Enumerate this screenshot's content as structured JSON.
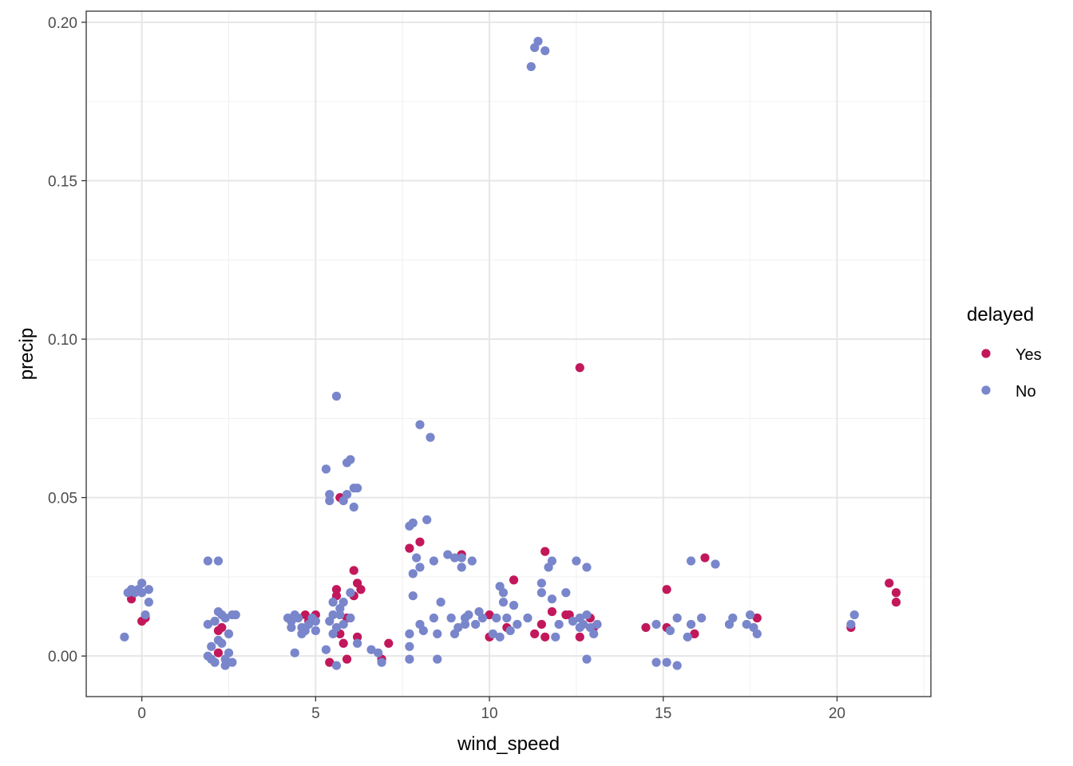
{
  "chart_data": {
    "type": "scatter",
    "title": "",
    "xlabel": "wind_speed",
    "ylabel": "precip",
    "xlim": [
      -1.6,
      22.7
    ],
    "ylim": [
      -0.0128,
      0.2035
    ],
    "x_ticks": [
      0,
      5,
      10,
      15,
      20
    ],
    "x_tick_labels": [
      "0",
      "5",
      "10",
      "15",
      "20"
    ],
    "y_ticks": [
      0.0,
      0.05,
      0.1,
      0.15,
      0.2
    ],
    "y_tick_labels": [
      "0.00",
      "0.05",
      "0.10",
      "0.15",
      "0.20"
    ],
    "grid": true,
    "legend": {
      "title": "delayed",
      "position": "right"
    },
    "series": [
      {
        "name": "Yes",
        "color": "#C2185B",
        "points": [
          [
            -0.3,
            0.018
          ],
          [
            0.0,
            0.011
          ],
          [
            0.1,
            0.012
          ],
          [
            2.2,
            0.008
          ],
          [
            2.3,
            0.009
          ],
          [
            2.2,
            0.001
          ],
          [
            4.7,
            0.013
          ],
          [
            4.8,
            0.011
          ],
          [
            5.0,
            0.013
          ],
          [
            5.4,
            -0.002
          ],
          [
            5.6,
            0.019
          ],
          [
            5.6,
            0.021
          ],
          [
            5.7,
            0.05
          ],
          [
            5.7,
            0.007
          ],
          [
            5.8,
            0.004
          ],
          [
            5.9,
            0.012
          ],
          [
            5.9,
            -0.001
          ],
          [
            6.1,
            0.027
          ],
          [
            6.1,
            0.019
          ],
          [
            6.2,
            0.023
          ],
          [
            6.2,
            0.006
          ],
          [
            6.3,
            0.021
          ],
          [
            6.9,
            -0.001
          ],
          [
            7.1,
            0.004
          ],
          [
            7.7,
            0.034
          ],
          [
            8.0,
            0.036
          ],
          [
            9.2,
            0.032
          ],
          [
            10.0,
            0.013
          ],
          [
            10.0,
            0.006
          ],
          [
            10.5,
            0.009
          ],
          [
            10.7,
            0.024
          ],
          [
            11.3,
            0.007
          ],
          [
            11.5,
            0.01
          ],
          [
            11.6,
            0.033
          ],
          [
            11.6,
            0.006
          ],
          [
            11.8,
            0.014
          ],
          [
            12.2,
            0.013
          ],
          [
            12.3,
            0.013
          ],
          [
            12.6,
            0.006
          ],
          [
            12.6,
            0.091
          ],
          [
            12.9,
            0.012
          ],
          [
            13.0,
            0.009
          ],
          [
            14.5,
            0.009
          ],
          [
            15.1,
            0.009
          ],
          [
            15.1,
            0.021
          ],
          [
            15.9,
            0.007
          ],
          [
            16.2,
            0.031
          ],
          [
            17.7,
            0.012
          ],
          [
            20.4,
            0.009
          ],
          [
            21.5,
            0.023
          ],
          [
            21.7,
            0.02
          ],
          [
            21.7,
            0.017
          ]
        ]
      },
      {
        "name": "No",
        "color": "#7986CB",
        "points": [
          [
            -0.5,
            0.006
          ],
          [
            -0.4,
            0.02
          ],
          [
            -0.3,
            0.021
          ],
          [
            -0.2,
            0.02
          ],
          [
            -0.1,
            0.021
          ],
          [
            0.0,
            0.023
          ],
          [
            0.0,
            0.02
          ],
          [
            0.1,
            0.013
          ],
          [
            0.2,
            0.017
          ],
          [
            0.2,
            0.021
          ],
          [
            1.9,
            0.03
          ],
          [
            1.9,
            0.0
          ],
          [
            1.9,
            0.01
          ],
          [
            2.0,
            -0.001
          ],
          [
            2.0,
            0.003
          ],
          [
            2.1,
            0.011
          ],
          [
            2.1,
            -0.002
          ],
          [
            2.2,
            0.03
          ],
          [
            2.2,
            0.014
          ],
          [
            2.3,
            0.013
          ],
          [
            2.3,
            0.004
          ],
          [
            2.4,
            -0.003
          ],
          [
            2.4,
            0.012
          ],
          [
            2.5,
            0.007
          ],
          [
            2.5,
            0.001
          ],
          [
            2.6,
            0.013
          ],
          [
            2.6,
            -0.002
          ],
          [
            2.7,
            0.013
          ],
          [
            2.4,
            -0.001
          ],
          [
            2.2,
            0.005
          ],
          [
            4.2,
            0.012
          ],
          [
            4.3,
            0.011
          ],
          [
            4.3,
            0.009
          ],
          [
            4.4,
            0.013
          ],
          [
            4.4,
            0.001
          ],
          [
            4.5,
            0.012
          ],
          [
            4.6,
            0.009
          ],
          [
            4.6,
            0.007
          ],
          [
            4.7,
            0.008
          ],
          [
            4.8,
            0.01
          ],
          [
            4.9,
            0.012
          ],
          [
            5.0,
            0.011
          ],
          [
            5.0,
            0.008
          ],
          [
            5.3,
            0.059
          ],
          [
            5.3,
            0.002
          ],
          [
            5.4,
            0.051
          ],
          [
            5.4,
            0.049
          ],
          [
            5.5,
            0.007
          ],
          [
            5.5,
            0.017
          ],
          [
            5.6,
            -0.003
          ],
          [
            5.6,
            0.082
          ],
          [
            5.7,
            0.013
          ],
          [
            5.8,
            0.049
          ],
          [
            5.8,
            0.017
          ],
          [
            5.9,
            0.051
          ],
          [
            5.9,
            0.061
          ],
          [
            6.0,
            0.062
          ],
          [
            6.0,
            0.02
          ],
          [
            6.1,
            0.053
          ],
          [
            6.1,
            0.047
          ],
          [
            6.2,
            0.053
          ],
          [
            6.2,
            0.004
          ],
          [
            5.8,
            0.01
          ],
          [
            5.5,
            0.013
          ],
          [
            5.7,
            0.015
          ],
          [
            6.0,
            0.012
          ],
          [
            5.4,
            0.011
          ],
          [
            5.6,
            0.009
          ],
          [
            6.6,
            0.002
          ],
          [
            6.8,
            0.001
          ],
          [
            6.9,
            -0.002
          ],
          [
            7.7,
            0.041
          ],
          [
            7.7,
            0.007
          ],
          [
            7.8,
            0.042
          ],
          [
            7.8,
            0.019
          ],
          [
            7.8,
            0.026
          ],
          [
            7.7,
            -0.001
          ],
          [
            7.9,
            0.031
          ],
          [
            8.0,
            0.073
          ],
          [
            8.0,
            0.01
          ],
          [
            8.1,
            0.008
          ],
          [
            8.2,
            0.043
          ],
          [
            8.3,
            0.069
          ],
          [
            8.4,
            0.03
          ],
          [
            8.4,
            0.012
          ],
          [
            8.5,
            -0.001
          ],
          [
            8.6,
            0.017
          ],
          [
            8.5,
            0.007
          ],
          [
            8.0,
            0.028
          ],
          [
            7.7,
            0.003
          ],
          [
            8.8,
            0.032
          ],
          [
            8.9,
            0.012
          ],
          [
            9.0,
            0.031
          ],
          [
            9.0,
            0.007
          ],
          [
            9.2,
            0.031
          ],
          [
            9.2,
            0.028
          ],
          [
            9.3,
            0.012
          ],
          [
            9.4,
            0.013
          ],
          [
            9.5,
            0.03
          ],
          [
            9.6,
            0.01
          ],
          [
            9.7,
            0.014
          ],
          [
            9.8,
            0.012
          ],
          [
            9.1,
            0.009
          ],
          [
            9.3,
            0.01
          ],
          [
            10.1,
            0.007
          ],
          [
            10.2,
            0.012
          ],
          [
            10.3,
            0.022
          ],
          [
            10.4,
            0.02
          ],
          [
            10.4,
            0.017
          ],
          [
            10.5,
            0.012
          ],
          [
            10.7,
            0.016
          ],
          [
            10.8,
            0.01
          ],
          [
            10.3,
            0.006
          ],
          [
            10.6,
            0.008
          ],
          [
            11.1,
            0.012
          ],
          [
            11.2,
            0.186
          ],
          [
            11.3,
            0.192
          ],
          [
            11.4,
            0.194
          ],
          [
            11.6,
            0.191
          ],
          [
            11.5,
            0.023
          ],
          [
            11.5,
            0.02
          ],
          [
            11.7,
            0.028
          ],
          [
            11.8,
            0.03
          ],
          [
            11.8,
            0.018
          ],
          [
            11.9,
            0.006
          ],
          [
            12.0,
            0.01
          ],
          [
            12.2,
            0.02
          ],
          [
            12.5,
            0.03
          ],
          [
            12.6,
            0.012
          ],
          [
            12.7,
            0.01
          ],
          [
            12.8,
            0.013
          ],
          [
            12.8,
            0.028
          ],
          [
            12.8,
            -0.001
          ],
          [
            12.9,
            0.009
          ],
          [
            13.0,
            0.007
          ],
          [
            13.1,
            0.01
          ],
          [
            12.4,
            0.011
          ],
          [
            12.6,
            0.009
          ],
          [
            14.8,
            0.01
          ],
          [
            14.8,
            -0.002
          ],
          [
            15.1,
            -0.002
          ],
          [
            15.2,
            0.008
          ],
          [
            15.4,
            -0.003
          ],
          [
            15.4,
            0.012
          ],
          [
            15.7,
            0.006
          ],
          [
            15.8,
            0.03
          ],
          [
            15.8,
            0.01
          ],
          [
            16.1,
            0.012
          ],
          [
            16.5,
            0.029
          ],
          [
            16.9,
            0.01
          ],
          [
            17.0,
            0.012
          ],
          [
            17.4,
            0.01
          ],
          [
            17.5,
            0.013
          ],
          [
            17.6,
            0.009
          ],
          [
            17.7,
            0.007
          ],
          [
            20.4,
            0.01
          ],
          [
            20.5,
            0.013
          ]
        ]
      }
    ]
  }
}
